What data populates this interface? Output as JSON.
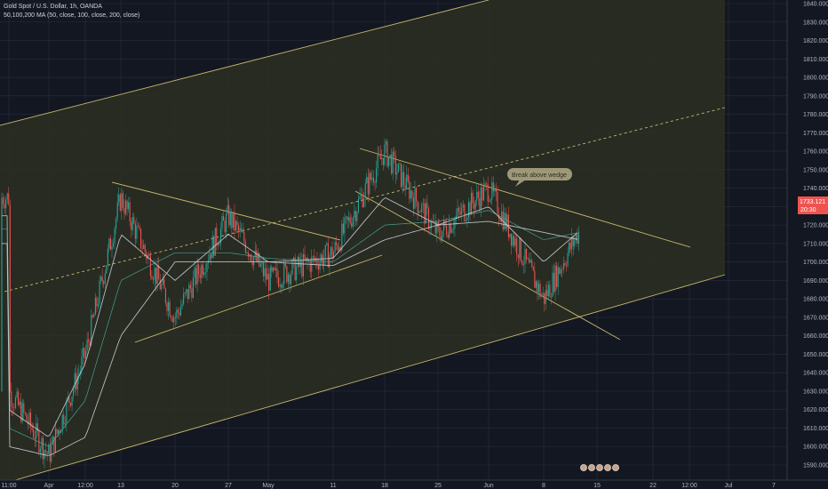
{
  "legend": {
    "symbol": "Gold Spot / U.S. Dollar, 1h, OANDA",
    "indicator": "50,100,200 MA (50, close, 100, close, 200, close)"
  },
  "colors": {
    "background": "#131722",
    "grid": "#2a2e39",
    "channel_fill": "#2b2f22",
    "trendline": "#e6d07a",
    "candle_up": "#26a69a",
    "candle_down": "#ef5350",
    "ma_white": "#d1d4dc",
    "ma_teal": "#4fb3a6",
    "price_label": "#ef5350"
  },
  "current_price": {
    "value": "1733.121",
    "countdown": "20:30"
  },
  "annotation": {
    "text": "Break above wedge"
  },
  "chart_data": {
    "type": "candlestick",
    "title": "Gold Spot / U.S. Dollar, 1h, OANDA",
    "ylim": [
      1585,
      1845
    ],
    "y_ticks": [
      "1840.000",
      "1830.000",
      "1820.000",
      "1810.000",
      "1800.000",
      "1790.000",
      "1780.000",
      "1770.000",
      "1760.000",
      "1750.000",
      "1740.000",
      "1730.000",
      "1720.000",
      "1710.000",
      "1700.000",
      "1690.000",
      "1680.000",
      "1670.000",
      "1660.000",
      "1650.000",
      "1640.000",
      "1630.000",
      "1620.000",
      "1610.000",
      "1600.000",
      "1590.000"
    ],
    "x_ticks": [
      "11:00",
      "Apr",
      "12:00",
      "13",
      "20",
      "27",
      "May",
      "11",
      "18",
      "25",
      "Jun",
      "8",
      "15",
      "22",
      "12:00",
      "Jul",
      "7"
    ],
    "close_path": [
      [
        "11:00",
        1630
      ],
      [
        "Apr",
        1595
      ],
      [
        "12:00",
        1650
      ],
      [
        "13",
        1735
      ],
      [
        "20",
        1670
      ],
      [
        "27",
        1725
      ],
      [
        "May",
        1690
      ],
      [
        "11",
        1705
      ],
      [
        "18",
        1760
      ],
      [
        "25",
        1715
      ],
      [
        "Jun",
        1740
      ],
      [
        "8",
        1680
      ],
      [
        "15",
        1735
      ]
    ],
    "series": [
      {
        "name": "50",
        "values": [
          1620,
          1605,
          1645,
          1715,
          1690,
          1715,
          1700,
          1702,
          1735,
          1720,
          1730,
          1700,
          1725
        ]
      },
      {
        "name": "100",
        "values": [
          1610,
          1600,
          1625,
          1690,
          1705,
          1705,
          1702,
          1700,
          1720,
          1722,
          1728,
          1712,
          1718
        ]
      },
      {
        "name": "200",
        "values": [
          1600,
          1595,
          1605,
          1660,
          1700,
          1700,
          1700,
          1698,
          1712,
          1720,
          1722,
          1716,
          1710
        ]
      }
    ],
    "last_price": 1733.121
  }
}
